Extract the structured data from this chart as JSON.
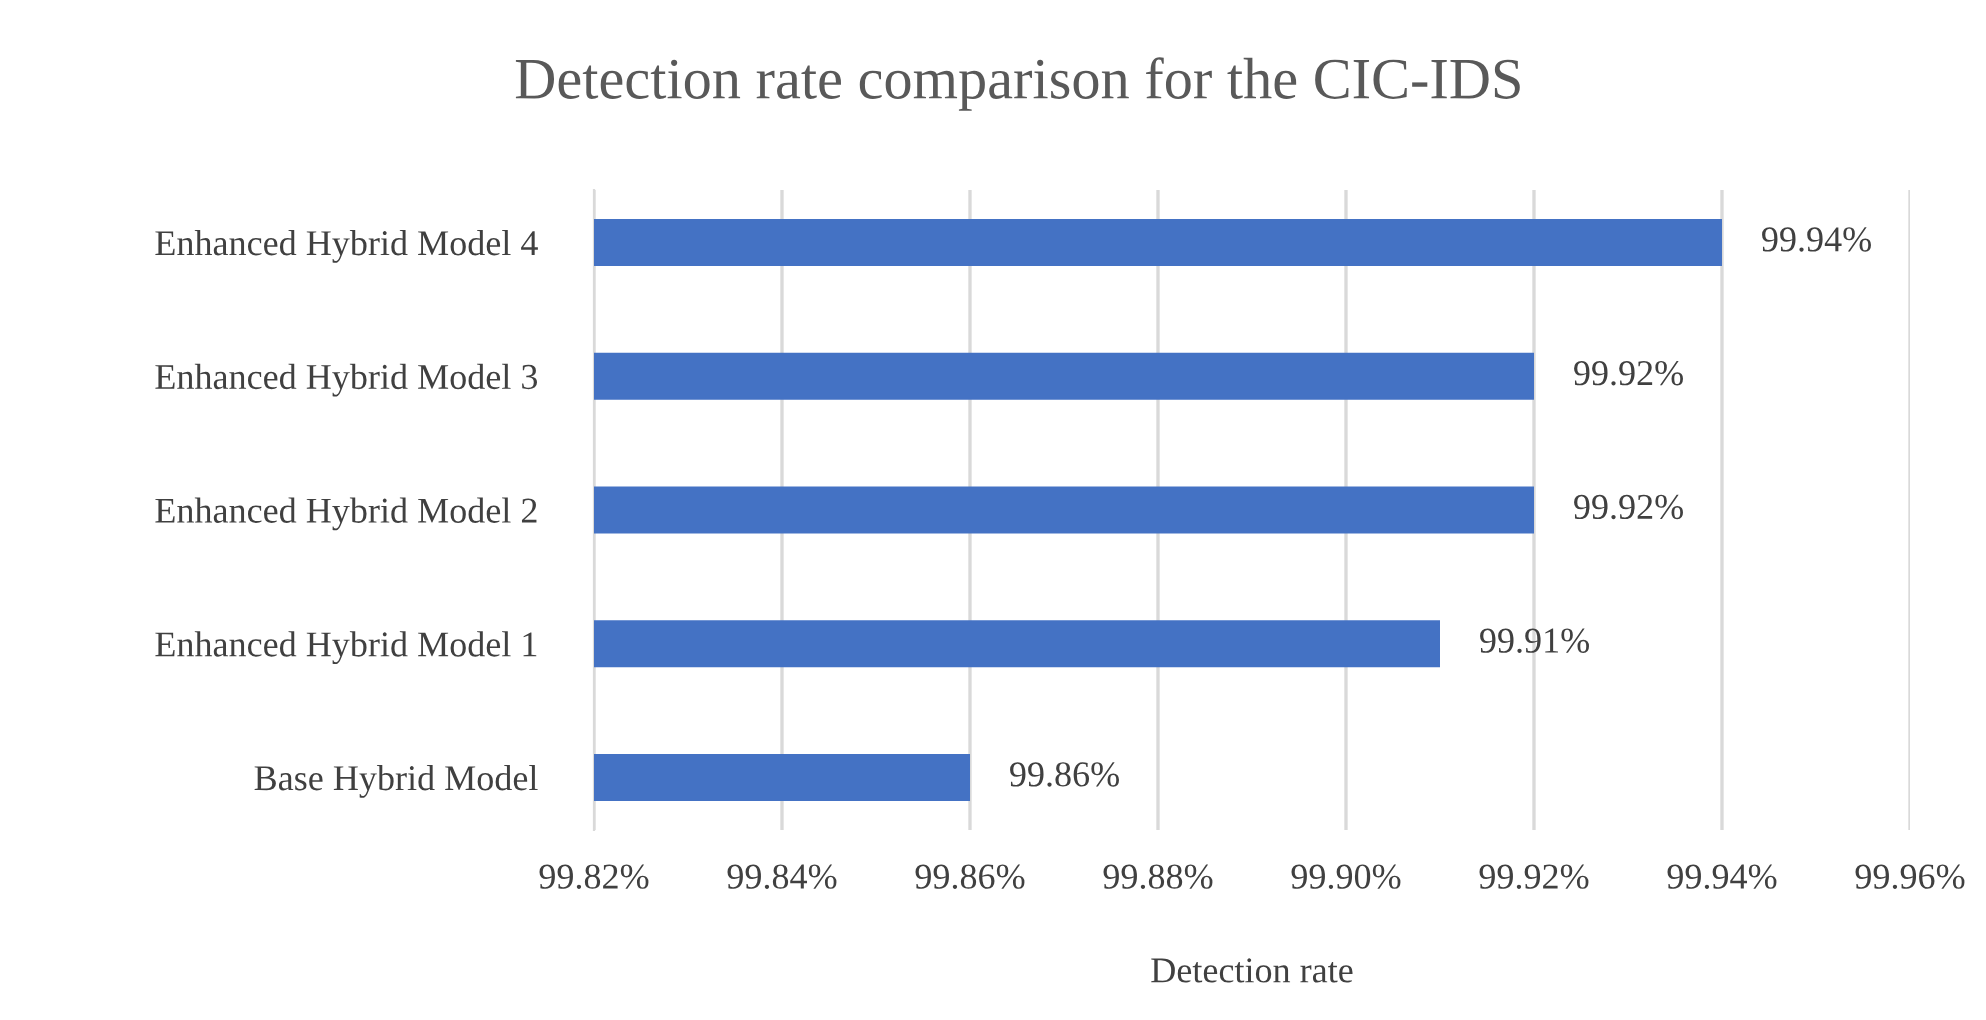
{
  "chart_data": {
    "type": "bar",
    "orientation": "horizontal",
    "title": "Detection rate comparison for the CIC-IDS",
    "xlabel": "Detection rate",
    "categories": [
      "Enhanced Hybrid Model 4",
      "Enhanced Hybrid Model 3",
      "Enhanced Hybrid Model 2",
      "Enhanced Hybrid Model 1",
      "Base Hybrid Model"
    ],
    "values": [
      99.94,
      99.92,
      99.92,
      99.91,
      99.86
    ],
    "color": "#4472c4",
    "value_labels": [
      "99.94%",
      "99.92%",
      "99.92%",
      "99.91%",
      "99.86%"
    ],
    "xlim": [
      99.82,
      99.96
    ],
    "xticks": [
      {
        "value": 99.82,
        "label": "99.82%"
      },
      {
        "value": 99.84,
        "label": "99.84%"
      },
      {
        "value": 99.86,
        "label": "99.86%"
      },
      {
        "value": 99.88,
        "label": "99.88%"
      },
      {
        "value": 99.9,
        "label": "99.90%"
      },
      {
        "value": 99.92,
        "label": "99.92%"
      },
      {
        "value": 99.94,
        "label": "99.94%"
      },
      {
        "value": 99.96,
        "label": "99.96%"
      }
    ],
    "grid": "x",
    "legend": false
  }
}
